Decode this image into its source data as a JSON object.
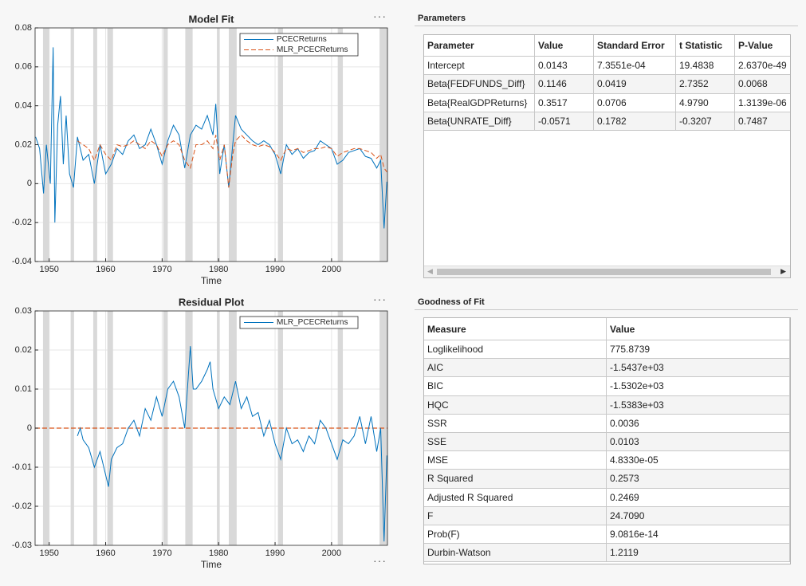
{
  "chart_data": [
    {
      "type": "line",
      "title": "Model Fit",
      "xlabel": "Time",
      "x": [
        1947.6,
        1948.3,
        1949.0,
        1949.5,
        1950.2,
        1950.7,
        1951.0,
        1951.5,
        1952,
        1952.5,
        1953,
        1953.6,
        1954.3,
        1955,
        1956,
        1957,
        1958,
        1959,
        1960,
        1961,
        1962,
        1963,
        1964,
        1965,
        1966,
        1967,
        1968,
        1969,
        1970,
        1971,
        1972,
        1973,
        1974,
        1975,
        1976,
        1977,
        1978,
        1979,
        1979.5,
        1980.2,
        1981,
        1981.8,
        1982.5,
        1983,
        1984,
        1985,
        1986,
        1987,
        1988,
        1989,
        1990,
        1991,
        1992,
        1993,
        1994,
        1995,
        1996,
        1997,
        1998,
        1999,
        2000,
        2001,
        2002,
        2003,
        2004,
        2005,
        2006,
        2007,
        2008,
        2008.7,
        2009.3,
        2009.8
      ],
      "series": [
        {
          "name": "PCECReturns",
          "color": "#0072bd",
          "style": "solid",
          "values": [
            0.024,
            0.018,
            -0.005,
            0.02,
            0.0,
            0.07,
            -0.02,
            0.03,
            0.045,
            0.01,
            0.035,
            0.005,
            -0.002,
            0.024,
            0.012,
            0.015,
            0.0,
            0.02,
            0.005,
            0.01,
            0.018,
            0.015,
            0.022,
            0.025,
            0.018,
            0.02,
            0.028,
            0.02,
            0.01,
            0.022,
            0.03,
            0.025,
            0.008,
            0.025,
            0.03,
            0.028,
            0.035,
            0.025,
            0.041,
            0.005,
            0.02,
            -0.002,
            0.02,
            0.035,
            0.028,
            0.025,
            0.022,
            0.02,
            0.022,
            0.02,
            0.015,
            0.005,
            0.02,
            0.015,
            0.018,
            0.013,
            0.016,
            0.017,
            0.022,
            0.02,
            0.018,
            0.01,
            0.012,
            0.016,
            0.017,
            0.018,
            0.014,
            0.013,
            0.008,
            0.012,
            -0.023,
            0.001
          ]
        },
        {
          "name": "MLR_PCECReturns",
          "color": "#d95319",
          "style": "dashed",
          "values": [
            null,
            null,
            null,
            null,
            null,
            null,
            null,
            null,
            null,
            null,
            null,
            null,
            null,
            0.022,
            0.02,
            0.018,
            0.012,
            0.02,
            0.015,
            0.012,
            0.02,
            0.019,
            0.02,
            0.022,
            0.02,
            0.018,
            0.022,
            0.02,
            0.014,
            0.02,
            0.022,
            0.02,
            0.012,
            0.008,
            0.02,
            0.02,
            0.022,
            0.018,
            0.025,
            0.012,
            0.02,
            -0.002,
            0.015,
            0.022,
            0.025,
            0.022,
            0.02,
            0.019,
            0.02,
            0.019,
            0.016,
            0.012,
            0.018,
            0.017,
            0.018,
            0.016,
            0.017,
            0.018,
            0.018,
            0.019,
            0.018,
            0.014,
            0.016,
            0.017,
            0.018,
            0.018,
            0.017,
            0.016,
            0.013,
            0.015,
            0.008,
            0.006
          ]
        }
      ],
      "recessions": [
        [
          1948.9,
          1950.0
        ],
        [
          1953.8,
          1954.4
        ],
        [
          1957.8,
          1958.5
        ],
        [
          1960.3,
          1961.3
        ],
        [
          1970.2,
          1971.0
        ],
        [
          1974.1,
          1975.4
        ],
        [
          1979.7,
          1980.2
        ],
        [
          1981.8,
          1983.2
        ],
        [
          1990.5,
          1991.4
        ],
        [
          2001.1,
          2002.0
        ],
        [
          2008.5,
          2009.9
        ]
      ],
      "xlim": [
        1947.5,
        2009.9
      ],
      "xticks": [
        1950,
        1960,
        1970,
        1980,
        1990,
        2000
      ],
      "ylim": [
        -0.04,
        0.08
      ],
      "yticks": [
        -0.04,
        -0.02,
        0,
        0.02,
        0.04,
        0.06,
        0.08
      ],
      "grid": true
    },
    {
      "type": "line",
      "title": "Residual Plot",
      "xlabel": "Time",
      "x": [
        1955,
        1955.5,
        1956,
        1957,
        1958,
        1959,
        1960,
        1960.5,
        1961,
        1962,
        1963,
        1964,
        1965,
        1966,
        1967,
        1968,
        1969,
        1970,
        1971,
        1972,
        1973,
        1974,
        1975,
        1975.5,
        1976,
        1977,
        1978,
        1978.5,
        1979,
        1980,
        1981,
        1982,
        1983,
        1984,
        1985,
        1986,
        1987,
        1988,
        1989,
        1990,
        1991,
        1992,
        1993,
        1994,
        1995,
        1996,
        1997,
        1998,
        1999,
        2000,
        2001,
        2002,
        2003,
        2004,
        2005,
        2006,
        2007,
        2008,
        2008.7,
        2009.3,
        2009.8
      ],
      "series": [
        {
          "name": "MLR_PCECReturns",
          "color": "#0072bd",
          "style": "solid",
          "values": [
            -0.002,
            0.0,
            -0.003,
            -0.005,
            -0.01,
            -0.006,
            -0.012,
            -0.015,
            -0.008,
            -0.005,
            -0.004,
            0.0,
            0.002,
            -0.002,
            0.005,
            0.002,
            0.008,
            0.003,
            0.01,
            0.012,
            0.008,
            0.0,
            0.021,
            0.01,
            0.01,
            0.012,
            0.015,
            0.017,
            0.01,
            0.005,
            0.008,
            0.006,
            0.012,
            0.005,
            0.008,
            0.003,
            0.004,
            -0.002,
            0.002,
            -0.004,
            -0.008,
            0.0,
            -0.004,
            -0.003,
            -0.006,
            -0.002,
            -0.004,
            0.002,
            0.0,
            -0.004,
            -0.008,
            -0.003,
            -0.004,
            -0.002,
            0.003,
            -0.004,
            0.003,
            -0.006,
            0.0,
            -0.029,
            -0.007
          ]
        }
      ],
      "reference_line": {
        "value": 0,
        "color": "#d95319",
        "style": "dashed"
      },
      "recessions": [
        [
          1948.9,
          1950.0
        ],
        [
          1953.8,
          1954.4
        ],
        [
          1957.8,
          1958.5
        ],
        [
          1960.3,
          1961.3
        ],
        [
          1970.2,
          1971.0
        ],
        [
          1974.1,
          1975.4
        ],
        [
          1979.7,
          1980.2
        ],
        [
          1981.8,
          1983.2
        ],
        [
          1990.5,
          1991.4
        ],
        [
          2001.1,
          2002.0
        ],
        [
          2008.5,
          2009.9
        ]
      ],
      "xlim": [
        1947.5,
        2009.9
      ],
      "xticks": [
        1950,
        1960,
        1970,
        1980,
        1990,
        2000
      ],
      "ylim": [
        -0.03,
        0.03
      ],
      "yticks": [
        -0.03,
        -0.02,
        -0.01,
        0,
        0.01,
        0.02,
        0.03
      ],
      "grid": true
    }
  ],
  "parameters": {
    "title": "Parameters",
    "header": [
      "Parameter",
      "Value",
      "Standard Error",
      "t Statistic",
      "P-Value"
    ],
    "rows": [
      [
        "Intercept",
        "0.0143",
        "7.3551e-04",
        "19.4838",
        "2.6370e-49"
      ],
      [
        "Beta{FEDFUNDS_Diff}",
        "0.1146",
        "0.0419",
        "2.7352",
        "0.0068"
      ],
      [
        "Beta{RealGDPReturns}",
        "0.3517",
        "0.0706",
        "4.9790",
        "1.3139e-06"
      ],
      [
        "Beta{UNRATE_Diff}",
        "-0.0571",
        "0.1782",
        "-0.3207",
        "0.7487"
      ]
    ]
  },
  "goodness_of_fit": {
    "title": "Goodness of Fit",
    "header": [
      "Measure",
      "Value"
    ],
    "rows": [
      [
        "Loglikelihood",
        "775.8739"
      ],
      [
        "AIC",
        "-1.5437e+03"
      ],
      [
        "BIC",
        "-1.5302e+03"
      ],
      [
        "HQC",
        "-1.5383e+03"
      ],
      [
        "SSR",
        "0.0036"
      ],
      [
        "SSE",
        "0.0103"
      ],
      [
        "MSE",
        "4.8330e-05"
      ],
      [
        "R Squared",
        "0.2573"
      ],
      [
        "Adjusted R Squared",
        "0.2469"
      ],
      [
        "F",
        "24.7090"
      ],
      [
        "Prob(F)",
        "9.0816e-14"
      ],
      [
        "Durbin-Watson",
        "1.2119"
      ]
    ]
  }
}
